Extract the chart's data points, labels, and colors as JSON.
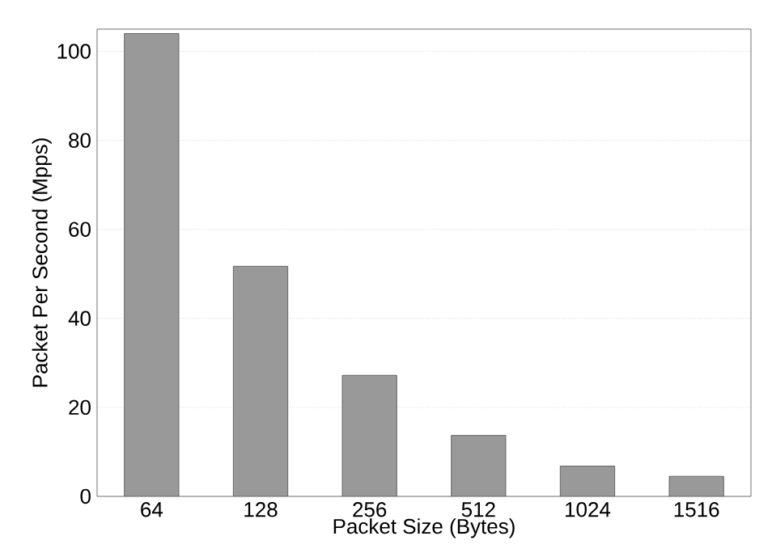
{
  "chart_data": {
    "type": "bar",
    "xlabel": "Packet Size (Bytes)",
    "ylabel": "Packet Per Second (Mpps)",
    "categories": [
      "64",
      "128",
      "256",
      "512",
      "1024",
      "1516"
    ],
    "values": [
      104,
      51.7,
      27.2,
      13.7,
      6.8,
      4.5
    ],
    "color": "#999999",
    "ylim": [
      0,
      105
    ],
    "yticks": [
      0,
      20,
      40,
      60,
      80,
      100
    ],
    "grid": "y"
  }
}
